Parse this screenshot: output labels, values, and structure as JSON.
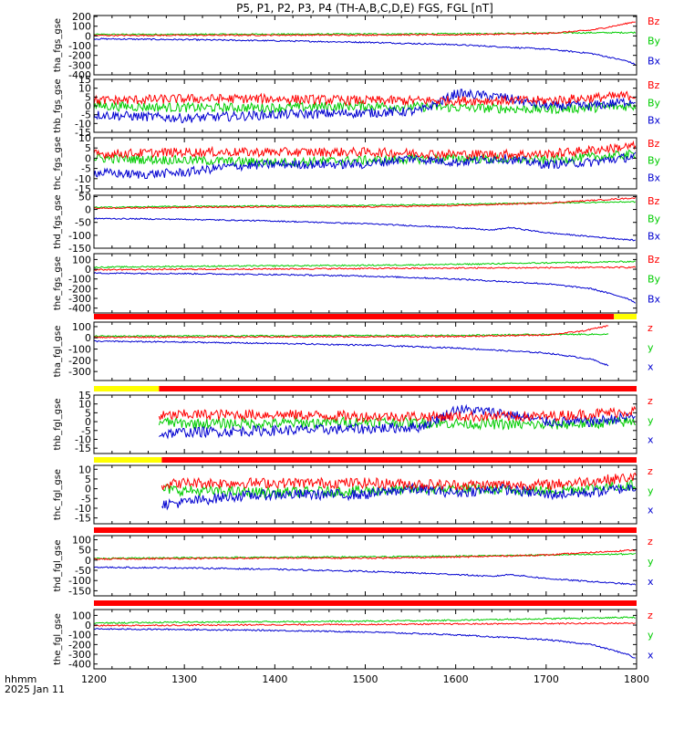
{
  "chart_data": {
    "type": "line",
    "title": "P5, P1, P2, P3, P4 (TH-A,B,C,D,E) FGS, FGL [nT]",
    "x_ticks": [
      "1200",
      "1300",
      "1400",
      "1500",
      "1600",
      "1700",
      "1800"
    ],
    "x_range": [
      1200,
      1800
    ],
    "x_label_line1": "hhmm",
    "x_label_line2": "2025 Jan 11",
    "colors": {
      "x": "#0000d0",
      "y": "#00cc00",
      "z": "#ff0000",
      "flag_red": "#ff0000",
      "flag_yellow": "#ffff00"
    },
    "panels": [
      {
        "ylabel": "tha_fgs_gse",
        "ylim": [
          -400,
          210
        ],
        "yticks": [
          "200",
          "100",
          "0",
          "-100",
          "-200",
          "-300",
          "-400"
        ],
        "legend": [
          "Bz",
          "By",
          "Bx"
        ],
        "start": 1200,
        "series": {
          "x": {
            "t": [
              1200,
              1300,
              1400,
              1500,
              1600,
              1700,
              1750,
              1790,
              1800
            ],
            "v": [
              -30,
              -38,
              -50,
              -65,
              -90,
              -135,
              -180,
              -260,
              -300
            ]
          },
          "y": {
            "t": [
              1200,
              1400,
              1600,
              1700,
              1800
            ],
            "v": [
              15,
              18,
              22,
              30,
              35
            ]
          },
          "z": {
            "t": [
              1200,
              1400,
              1600,
              1700,
              1750,
              1780,
              1800
            ],
            "v": [
              5,
              8,
              12,
              25,
              60,
              110,
              150
            ]
          }
        }
      },
      {
        "ylabel": "thb_fgs_gse",
        "ylim": [
          -15,
          15
        ],
        "yticks": [
          "15",
          "10",
          "5",
          "0",
          "-5",
          "-10",
          "-15"
        ],
        "legend": [
          "Bz",
          "By",
          "Bx"
        ],
        "start": 1200,
        "series": {
          "x": {
            "t": [
              1200,
              1250,
              1300,
              1400,
              1500,
              1560,
              1590,
              1600,
              1650,
              1700,
              1750,
              1800
            ],
            "v": [
              -5,
              -6,
              -7,
              -5,
              -4,
              -3,
              4,
              7,
              5,
              0,
              0,
              3
            ]
          },
          "y": {
            "t": [
              1200,
              1300,
              1400,
              1500,
              1600,
              1700,
              1800
            ],
            "v": [
              0,
              -1,
              -1,
              0,
              -1,
              -2,
              0
            ]
          },
          "z": {
            "t": [
              1200,
              1300,
              1400,
              1500,
              1600,
              1700,
              1800
            ],
            "v": [
              3,
              4,
              4,
              3,
              3,
              3,
              6
            ]
          }
        }
      },
      {
        "ylabel": "thc_fgs_gse",
        "ylim": [
          -15,
          10
        ],
        "yticks": [
          "10",
          "5",
          "0",
          "-5",
          "-10",
          "-15"
        ],
        "legend": [
          "Bz",
          "By",
          "Bx"
        ],
        "start": 1200,
        "series": {
          "x": {
            "t": [
              1200,
              1250,
              1300,
              1350,
              1400,
              1500,
              1550,
              1600,
              1650,
              1700,
              1750,
              1800
            ],
            "v": [
              -7,
              -8,
              -7,
              -4,
              -3,
              -3,
              0,
              -2,
              0,
              -3,
              -2,
              1
            ]
          },
          "y": {
            "t": [
              1200,
              1300,
              1400,
              1500,
              1600,
              1700,
              1800
            ],
            "v": [
              0,
              -1,
              -2,
              -1,
              0,
              -1,
              2
            ]
          },
          "z": {
            "t": [
              1200,
              1300,
              1400,
              1500,
              1600,
              1700,
              1800
            ],
            "v": [
              2,
              3,
              3,
              3,
              2,
              2,
              6
            ]
          }
        }
      },
      {
        "ylabel": "thd_fgs_gse",
        "ylim": [
          -150,
          55
        ],
        "yticks": [
          "50",
          "0",
          "-50",
          "-100",
          "-150"
        ],
        "legend": [
          "Bz",
          "By",
          "Bx"
        ],
        "start": 1200,
        "series": {
          "x": {
            "t": [
              1200,
              1300,
              1400,
              1500,
              1600,
              1640,
              1660,
              1700,
              1750,
              1800
            ],
            "v": [
              -35,
              -38,
              -45,
              -55,
              -70,
              -80,
              -70,
              -90,
              -105,
              -120
            ]
          },
          "y": {
            "t": [
              1200,
              1300,
              1400,
              1500,
              1600,
              1700,
              1800
            ],
            "v": [
              8,
              12,
              14,
              16,
              20,
              25,
              30
            ]
          },
          "z": {
            "t": [
              1200,
              1300,
              1400,
              1500,
              1600,
              1700,
              1800
            ],
            "v": [
              5,
              8,
              10,
              10,
              15,
              25,
              45
            ]
          }
        }
      },
      {
        "ylabel": "the_fgs_gse",
        "ylim": [
          -450,
          160
        ],
        "yticks": [
          "100",
          "0",
          "-100",
          "-200",
          "-300",
          "-400"
        ],
        "legend": [
          "Bz",
          "By",
          "Bx"
        ],
        "start": 1200,
        "series": {
          "x": {
            "t": [
              1200,
              1300,
              1400,
              1500,
              1600,
              1700,
              1750,
              1790,
              1800
            ],
            "v": [
              -40,
              -45,
              -55,
              -70,
              -100,
              -150,
              -200,
              -300,
              -350
            ]
          },
          "y": {
            "t": [
              1200,
              1300,
              1400,
              1500,
              1600,
              1700,
              1800
            ],
            "v": [
              20,
              30,
              35,
              40,
              50,
              65,
              80
            ]
          },
          "z": {
            "t": [
              1200,
              1800
            ],
            "v": [
              -5,
              20
            ]
          }
        }
      },
      {
        "ylabel": "tha_fgl_gse",
        "ylim": [
          -380,
          140
        ],
        "yticks": [
          "100",
          "0",
          "-100",
          "-200",
          "-300"
        ],
        "legend": [
          "z",
          "y",
          "x"
        ],
        "start": 1200,
        "series": {
          "x": {
            "t": [
              1200,
              1300,
              1400,
              1500,
              1600,
              1700,
              1750,
              1770
            ],
            "v": [
              -30,
              -38,
              -50,
              -65,
              -90,
              -135,
              -190,
              -250
            ]
          },
          "y": {
            "t": [
              1200,
              1400,
              1600,
              1700,
              1770
            ],
            "v": [
              15,
              18,
              22,
              30,
              32
            ]
          },
          "z": {
            "t": [
              1200,
              1400,
              1600,
              1700,
              1740,
              1770
            ],
            "v": [
              5,
              8,
              12,
              25,
              60,
              110
            ]
          }
        }
      },
      {
        "ylabel": "thb_fgl_gse",
        "ylim": [
          -18,
          15
        ],
        "yticks": [
          "15",
          "10",
          "5",
          "0",
          "-5",
          "-10",
          "-15"
        ],
        "legend": [
          "z",
          "y",
          "x"
        ],
        "start": 1272,
        "series": {
          "x": {
            "t": [
              1272,
              1300,
              1400,
              1500,
              1560,
              1590,
              1600,
              1650,
              1700,
              1750,
              1800
            ],
            "v": [
              -7,
              -6,
              -5,
              -4,
              -3,
              4,
              7,
              5,
              0,
              0,
              3
            ]
          },
          "y": {
            "t": [
              1272,
              1300,
              1400,
              1500,
              1600,
              1700,
              1800
            ],
            "v": [
              0,
              -1,
              -1,
              0,
              -1,
              -2,
              0
            ]
          },
          "z": {
            "t": [
              1272,
              1300,
              1400,
              1500,
              1600,
              1700,
              1800
            ],
            "v": [
              3,
              4,
              4,
              3,
              3,
              3,
              6
            ]
          }
        }
      },
      {
        "ylabel": "thc_fgl_gse",
        "ylim": [
          -18,
          12
        ],
        "yticks": [
          "10",
          "5",
          "0",
          "-5",
          "-10",
          "-15"
        ],
        "legend": [
          "z",
          "y",
          "x"
        ],
        "start": 1275,
        "series": {
          "x": {
            "t": [
              1275,
              1300,
              1350,
              1400,
              1500,
              1550,
              1600,
              1650,
              1700,
              1750,
              1800
            ],
            "v": [
              -8,
              -7,
              -4,
              -3,
              -3,
              0,
              -2,
              0,
              -3,
              -2,
              1
            ]
          },
          "y": {
            "t": [
              1275,
              1300,
              1400,
              1500,
              1600,
              1700,
              1800
            ],
            "v": [
              0,
              -1,
              -2,
              -1,
              0,
              -1,
              2
            ]
          },
          "z": {
            "t": [
              1275,
              1300,
              1400,
              1500,
              1600,
              1700,
              1800
            ],
            "v": [
              2,
              3,
              3,
              3,
              2,
              2,
              6
            ]
          }
        }
      },
      {
        "ylabel": "thd_fgl_gse",
        "ylim": [
          -175,
          120
        ],
        "yticks": [
          "100",
          "50",
          "0",
          "-50",
          "-100",
          "-150"
        ],
        "legend": [
          "z",
          "y",
          "x"
        ],
        "start": 1200,
        "series": {
          "x": {
            "t": [
              1200,
              1300,
              1400,
              1500,
              1600,
              1640,
              1660,
              1700,
              1750,
              1800
            ],
            "v": [
              -35,
              -38,
              -45,
              -55,
              -70,
              -80,
              -70,
              -90,
              -105,
              -120
            ]
          },
          "y": {
            "t": [
              1200,
              1300,
              1400,
              1500,
              1600,
              1700,
              1800
            ],
            "v": [
              8,
              12,
              14,
              16,
              20,
              25,
              30
            ]
          },
          "z": {
            "t": [
              1200,
              1300,
              1400,
              1500,
              1600,
              1700,
              1800
            ],
            "v": [
              5,
              8,
              10,
              10,
              15,
              25,
              50
            ]
          }
        }
      },
      {
        "ylabel": "the_fgl_gse",
        "ylim": [
          -450,
          160
        ],
        "yticks": [
          "100",
          "0",
          "-100",
          "-200",
          "-300",
          "-400"
        ],
        "legend": [
          "z",
          "y",
          "x"
        ],
        "start": 1200,
        "series": {
          "x": {
            "t": [
              1200,
              1300,
              1400,
              1500,
              1600,
              1700,
              1750,
              1790,
              1800
            ],
            "v": [
              -40,
              -45,
              -55,
              -70,
              -100,
              -150,
              -200,
              -300,
              -350
            ]
          },
          "y": {
            "t": [
              1200,
              1300,
              1400,
              1500,
              1600,
              1700,
              1800
            ],
            "v": [
              20,
              30,
              35,
              40,
              50,
              65,
              80
            ]
          },
          "z": {
            "t": [
              1200,
              1800
            ],
            "v": [
              -5,
              20
            ]
          }
        }
      }
    ],
    "flag_bars": [
      {
        "after_panel": 4,
        "segments": [
          {
            "from": 1200,
            "to": 1775,
            "color": "red"
          },
          {
            "from": 1775,
            "to": 1800,
            "color": "yellow"
          }
        ]
      },
      {
        "after_panel": 5,
        "segments": [
          {
            "from": 1200,
            "to": 1272,
            "color": "yellow"
          },
          {
            "from": 1272,
            "to": 1800,
            "color": "red"
          }
        ]
      },
      {
        "after_panel": 6,
        "segments": [
          {
            "from": 1200,
            "to": 1275,
            "color": "yellow"
          },
          {
            "from": 1275,
            "to": 1800,
            "color": "red"
          }
        ]
      },
      {
        "after_panel": 7,
        "segments": [
          {
            "from": 1200,
            "to": 1800,
            "color": "red"
          }
        ]
      },
      {
        "after_panel": 8,
        "segments": [
          {
            "from": 1200,
            "to": 1800,
            "color": "red"
          }
        ]
      }
    ]
  }
}
